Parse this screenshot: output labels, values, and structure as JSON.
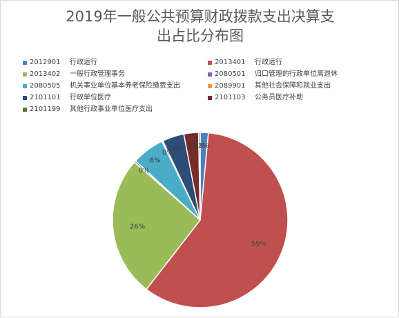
{
  "colors": [
    "#4f81bd",
    "#c0504d",
    "#9bbb59",
    "#8064a2",
    "#4bacc6",
    "#f79646",
    "#2c4d75",
    "#772c2a",
    "#5f7530"
  ],
  "chart_data": {
    "type": "pie",
    "title_lines": [
      "2019年一般公共预算财政拨款支出决算支",
      "出占比分布图"
    ],
    "legend_position": "top",
    "slices": [
      {
        "code": "2012901",
        "name": "行政运行",
        "value": 1.5,
        "label": "2%"
      },
      {
        "code": "2013401",
        "name": "行政运行",
        "value": 59,
        "label": "59%"
      },
      {
        "code": "2013402",
        "name": "一般行政管理事务",
        "value": 26,
        "label": "26%"
      },
      {
        "code": "2080501",
        "name": "归口管理的行政单位离退休",
        "value": 0.3,
        "label": "0%"
      },
      {
        "code": "2080505",
        "name": "机关事业单位基本养老保险缴费支出",
        "value": 6,
        "label": "6%"
      },
      {
        "code": "2089901",
        "name": "其他社会保障和就业支出",
        "value": 0.2,
        "label": "0%"
      },
      {
        "code": "2101101",
        "name": "行政单位医疗",
        "value": 4,
        "label": "4%"
      },
      {
        "code": "2101103",
        "name": "公务员医疗补助",
        "value": 2.7,
        "label": "3%"
      },
      {
        "code": "2101199",
        "name": "其他行政事业单位医疗支出",
        "value": 0.3,
        "label": "0%"
      }
    ]
  }
}
